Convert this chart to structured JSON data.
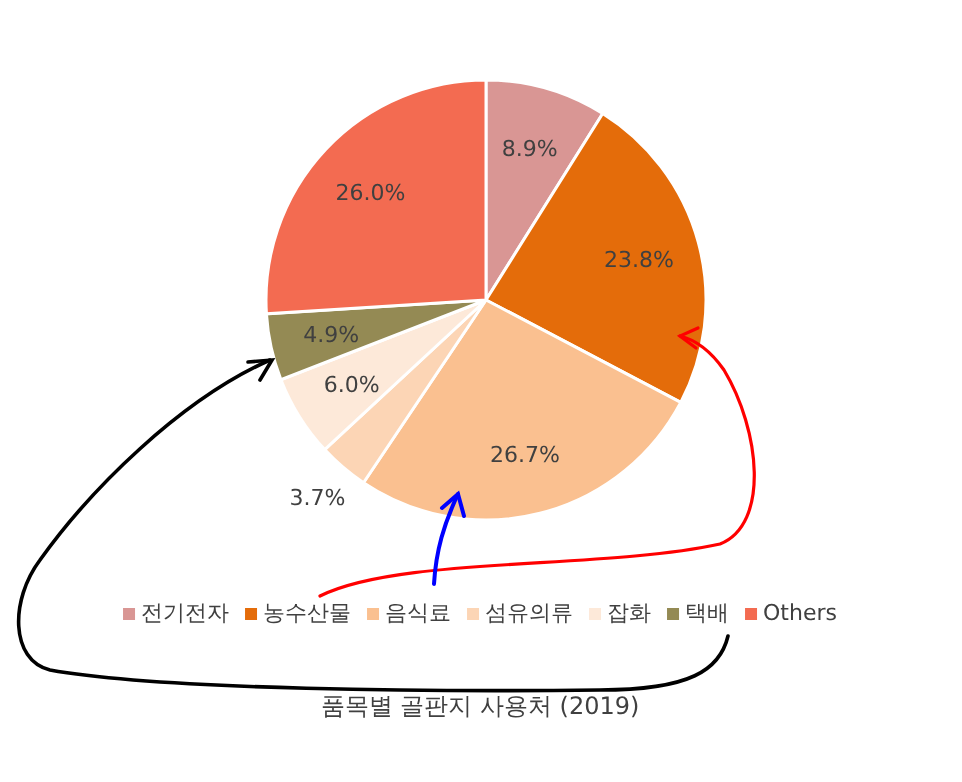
{
  "chart_data": {
    "type": "pie",
    "title": "품목별 골판지 사용처 (2019)",
    "categories": [
      "전기전자",
      "농수산물",
      "음식료",
      "섬유의류",
      "잡화",
      "택배",
      "Others"
    ],
    "values": [
      8.9,
      23.8,
      26.7,
      3.7,
      6.0,
      4.9,
      26.0
    ],
    "value_labels": [
      "8.9%",
      "23.8%",
      "26.7%",
      "3.7%",
      "6.0%",
      "4.9%",
      "26.0%"
    ],
    "colors": [
      "#d99694",
      "#e46c0a",
      "#fac090",
      "#fcd5b5",
      "#fde9d9",
      "#948a54",
      "#f36b51"
    ],
    "legend": "bottom"
  }
}
